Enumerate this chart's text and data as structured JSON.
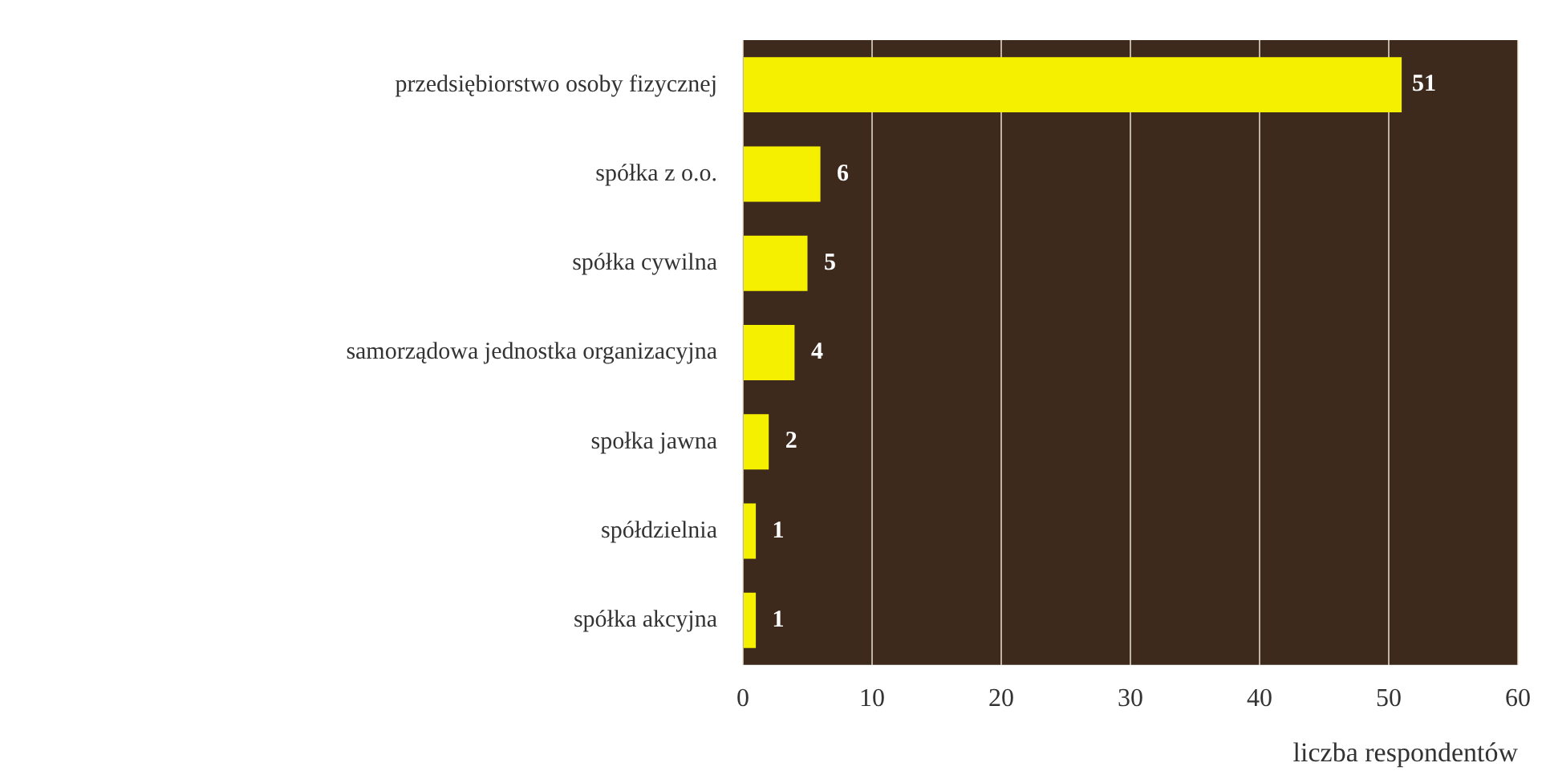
{
  "chart_data": {
    "type": "bar",
    "orientation": "horizontal",
    "categories": [
      "przedsiębiorstwo osoby fizycznej",
      "spółka z o.o.",
      "spółka cywilna",
      "samorządowa jednostka organizacyjna",
      "społka jawna",
      "spółdzielnia",
      "spółka akcyjna"
    ],
    "values": [
      51,
      6,
      5,
      4,
      2,
      1,
      1
    ],
    "color": "#f5ef00",
    "xlim": [
      0,
      60
    ],
    "xticks": [
      0,
      10,
      20,
      30,
      40,
      50,
      60
    ],
    "xlabel": "liczba respondentów",
    "grid": "x",
    "data_labels": true
  }
}
